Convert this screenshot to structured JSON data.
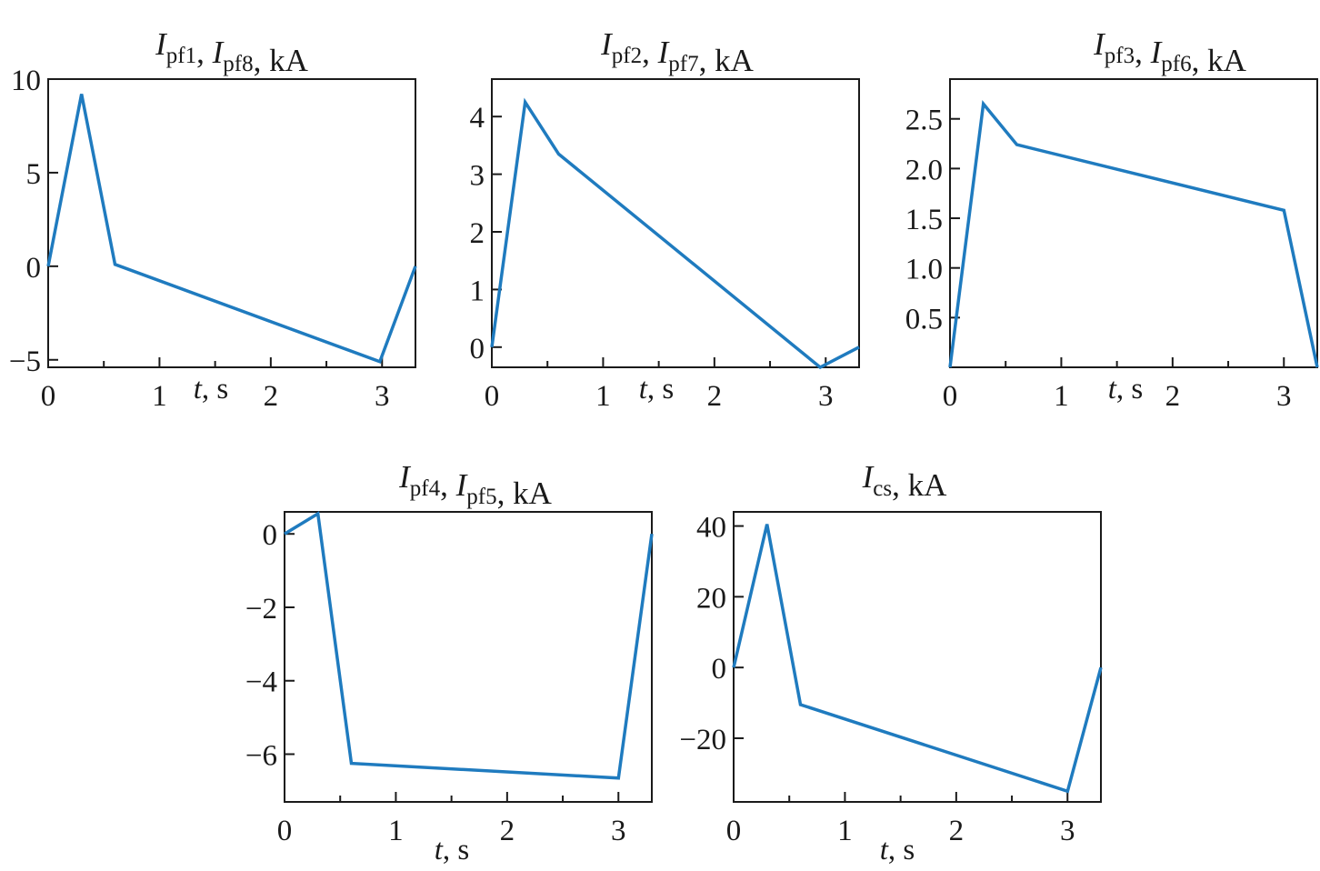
{
  "series_color": "#1f7bbf",
  "chart_data": [
    {
      "type": "line",
      "title": {
        "parts": [
          {
            "main": "I",
            "sub": "pf1"
          },
          {
            "main": "I",
            "sub": "pf8"
          }
        ],
        "unit": "kA"
      },
      "xlabel": {
        "var": "t",
        "unit": "s"
      },
      "xlim": [
        0,
        3.3
      ],
      "ylim": [
        -5.4,
        10
      ],
      "xticks": [
        0,
        1,
        2,
        3
      ],
      "xtick_labels": [
        "0",
        "1",
        "2",
        "3"
      ],
      "yticks": [
        -5,
        0,
        5,
        10
      ],
      "ytick_labels": [
        "−5",
        "0",
        "5",
        "10"
      ],
      "x": [
        0,
        0.3,
        0.6,
        2.98,
        3.3
      ],
      "y": [
        0,
        9.2,
        0.1,
        -5.1,
        0
      ],
      "grid": false
    },
    {
      "type": "line",
      "title": {
        "parts": [
          {
            "main": "I",
            "sub": "pf2"
          },
          {
            "main": "I",
            "sub": "pf7"
          }
        ],
        "unit": "kA"
      },
      "xlabel": {
        "var": "t",
        "unit": "s"
      },
      "xlim": [
        0,
        3.3
      ],
      "ylim": [
        -0.35,
        4.65
      ],
      "xticks": [
        0,
        1,
        2,
        3
      ],
      "xtick_labels": [
        "0",
        "1",
        "2",
        "3"
      ],
      "yticks": [
        0,
        1,
        2,
        3,
        4
      ],
      "ytick_labels": [
        "0",
        "1",
        "2",
        "3",
        "4"
      ],
      "x": [
        0,
        0.3,
        0.6,
        2.95,
        3.3
      ],
      "y": [
        0,
        4.25,
        3.35,
        -0.35,
        0
      ],
      "grid": false
    },
    {
      "type": "line",
      "title": {
        "parts": [
          {
            "main": "I",
            "sub": "pf3"
          },
          {
            "main": "I",
            "sub": "pf6"
          }
        ],
        "unit": "kA"
      },
      "xlabel": {
        "var": "t",
        "unit": "s"
      },
      "xlim": [
        0,
        3.3
      ],
      "ylim": [
        0.0,
        2.9
      ],
      "xticks": [
        0,
        1,
        2,
        3
      ],
      "xtick_labels": [
        "0",
        "1",
        "2",
        "3"
      ],
      "yticks": [
        0.5,
        1.0,
        1.5,
        2.0,
        2.5
      ],
      "ytick_labels": [
        "0.5",
        "1.0",
        "1.5",
        "2.0",
        "2.5"
      ],
      "x": [
        0,
        0.3,
        0.6,
        3.0,
        3.3
      ],
      "y": [
        0,
        2.65,
        2.24,
        1.58,
        0
      ],
      "grid": false
    },
    {
      "type": "line",
      "title": {
        "parts": [
          {
            "main": "I",
            "sub": "pf4"
          },
          {
            "main": "I",
            "sub": "pf5"
          }
        ],
        "unit": "kA"
      },
      "xlabel": {
        "var": "t",
        "unit": "s"
      },
      "xlim": [
        0,
        3.3
      ],
      "ylim": [
        -7.3,
        0.6
      ],
      "xticks": [
        0,
        1,
        2,
        3
      ],
      "xtick_labels": [
        "0",
        "1",
        "2",
        "3"
      ],
      "yticks": [
        -6,
        -4,
        -2,
        0
      ],
      "ytick_labels": [
        "−6",
        "−4",
        "−2",
        "0"
      ],
      "x": [
        0,
        0.3,
        0.6,
        3.0,
        3.3
      ],
      "y": [
        0,
        0.55,
        -6.25,
        -6.65,
        0
      ],
      "grid": false
    },
    {
      "type": "line",
      "title": {
        "parts": [
          {
            "main": "I",
            "sub": "cs"
          }
        ],
        "unit": "kA"
      },
      "xlabel": {
        "var": "t",
        "unit": "s"
      },
      "xlim": [
        0,
        3.3
      ],
      "ylim": [
        -38,
        44
      ],
      "xticks": [
        0,
        1,
        2,
        3
      ],
      "xtick_labels": [
        "0",
        "1",
        "2",
        "3"
      ],
      "yticks": [
        -20,
        0,
        20,
        40
      ],
      "ytick_labels": [
        "−20",
        "0",
        "20",
        "40"
      ],
      "x": [
        0,
        0.3,
        0.6,
        3.0,
        3.3
      ],
      "y": [
        0,
        40.5,
        -10.5,
        -35,
        0
      ],
      "grid": false
    }
  ]
}
